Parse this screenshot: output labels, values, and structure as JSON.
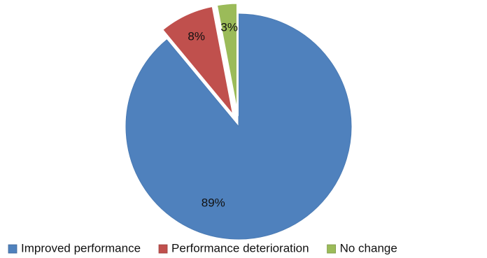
{
  "chart_data": {
    "type": "pie",
    "title": "",
    "legend_position": "bottom",
    "slices": [
      {
        "label": "Improved performance",
        "value": 89,
        "value_label": "89%",
        "color": "#4F81BD",
        "exploded": false
      },
      {
        "label": "Performance deterioration",
        "value": 8,
        "value_label": "8%",
        "color": "#C0504D",
        "exploded": true
      },
      {
        "label": "No change",
        "value": 3,
        "value_label": "3%",
        "color": "#9BBB59",
        "exploded": true
      }
    ]
  }
}
